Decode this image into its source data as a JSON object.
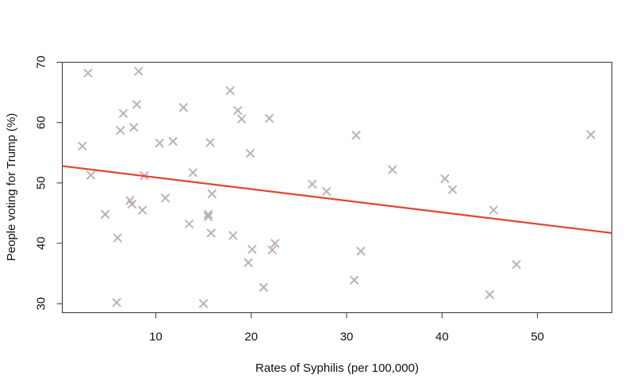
{
  "chart_data": {
    "type": "scatter",
    "xlabel": "Rates of Syphilis (per 100,000)",
    "ylabel": "People voting for Trump (%)",
    "xlim": [
      0.2,
      57.8
    ],
    "ylim": [
      28.5,
      70.0
    ],
    "xticks": [
      10,
      20,
      30,
      40,
      50
    ],
    "yticks": [
      30,
      40,
      50,
      60,
      70
    ],
    "grid": false,
    "marker": "x",
    "colors": {
      "points": "#bfb0b3",
      "fit_line": "#e0452c",
      "axes": "#333333"
    },
    "series": [
      {
        "points": [
          {
            "x": 2.3,
            "y": 56.1
          },
          {
            "x": 2.9,
            "y": 68.2
          },
          {
            "x": 3.2,
            "y": 51.3
          },
          {
            "x": 4.7,
            "y": 44.8
          },
          {
            "x": 5.9,
            "y": 30.2
          },
          {
            "x": 6.0,
            "y": 40.9
          },
          {
            "x": 6.3,
            "y": 58.7
          },
          {
            "x": 6.6,
            "y": 61.5
          },
          {
            "x": 7.3,
            "y": 47.1
          },
          {
            "x": 7.5,
            "y": 46.5
          },
          {
            "x": 7.7,
            "y": 59.2
          },
          {
            "x": 8.0,
            "y": 63.0
          },
          {
            "x": 8.2,
            "y": 68.5
          },
          {
            "x": 8.6,
            "y": 45.5
          },
          {
            "x": 8.8,
            "y": 51.2
          },
          {
            "x": 10.4,
            "y": 56.6
          },
          {
            "x": 11.0,
            "y": 47.5
          },
          {
            "x": 11.8,
            "y": 56.9
          },
          {
            "x": 12.9,
            "y": 62.5
          },
          {
            "x": 13.5,
            "y": 43.2
          },
          {
            "x": 13.9,
            "y": 51.7
          },
          {
            "x": 15.0,
            "y": 30.0
          },
          {
            "x": 15.5,
            "y": 44.8
          },
          {
            "x": 15.5,
            "y": 44.4
          },
          {
            "x": 15.7,
            "y": 56.7
          },
          {
            "x": 15.8,
            "y": 41.7
          },
          {
            "x": 15.9,
            "y": 48.2
          },
          {
            "x": 17.8,
            "y": 65.3
          },
          {
            "x": 18.1,
            "y": 41.3
          },
          {
            "x": 18.6,
            "y": 62.0
          },
          {
            "x": 19.0,
            "y": 60.6
          },
          {
            "x": 19.7,
            "y": 36.8
          },
          {
            "x": 19.9,
            "y": 54.9
          },
          {
            "x": 20.1,
            "y": 39.0
          },
          {
            "x": 21.3,
            "y": 32.7
          },
          {
            "x": 21.9,
            "y": 60.7
          },
          {
            "x": 22.2,
            "y": 38.9
          },
          {
            "x": 22.5,
            "y": 40.0
          },
          {
            "x": 26.4,
            "y": 49.8
          },
          {
            "x": 27.9,
            "y": 48.6
          },
          {
            "x": 30.8,
            "y": 33.9
          },
          {
            "x": 31.0,
            "y": 57.9
          },
          {
            "x": 31.5,
            "y": 38.7
          },
          {
            "x": 34.8,
            "y": 52.2
          },
          {
            "x": 40.3,
            "y": 50.7
          },
          {
            "x": 41.1,
            "y": 48.9
          },
          {
            "x": 45.0,
            "y": 31.5
          },
          {
            "x": 45.4,
            "y": 45.5
          },
          {
            "x": 47.8,
            "y": 36.5
          },
          {
            "x": 55.6,
            "y": 58.0
          }
        ]
      }
    ],
    "fit_line": {
      "x": [
        0.2,
        57.8
      ],
      "y": [
        52.8,
        41.7
      ]
    }
  }
}
